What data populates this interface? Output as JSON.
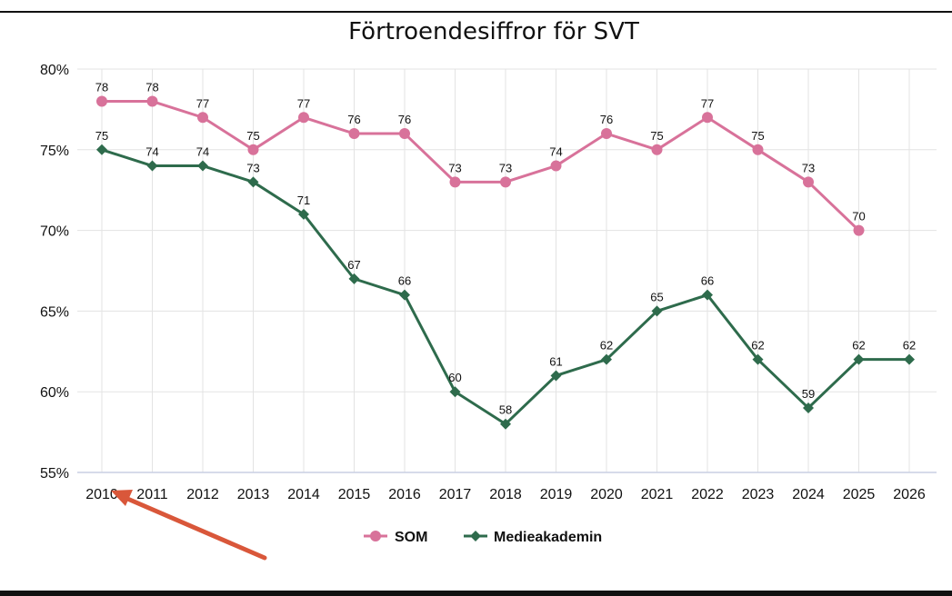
{
  "chart_data": {
    "type": "line",
    "title": "Förtroendesiffror för SVT",
    "xlabel": "",
    "ylabel": "",
    "categories": [
      "2010",
      "2011",
      "2012",
      "2013",
      "2014",
      "2015",
      "2016",
      "2017",
      "2018",
      "2019",
      "2020",
      "2021",
      "2022",
      "2023",
      "2024",
      "2025",
      "2026"
    ],
    "ylim": [
      55,
      80
    ],
    "y_ticks": [
      55,
      60,
      65,
      70,
      75,
      80
    ],
    "y_tick_labels": [
      "55%",
      "60%",
      "65%",
      "70%",
      "75%",
      "80%"
    ],
    "grid": true,
    "legend_position": "bottom-center",
    "series": [
      {
        "name": "SOM",
        "color": "#d8729a",
        "marker": "circle",
        "values": [
          78,
          78,
          77,
          75,
          77,
          76,
          76,
          73,
          73,
          74,
          76,
          75,
          77,
          75,
          73,
          70,
          null
        ]
      },
      {
        "name": "Medieakademin",
        "color": "#2e6b4c",
        "marker": "diamond",
        "values": [
          75,
          74,
          74,
          73,
          71,
          67,
          66,
          60,
          58,
          61,
          62,
          65,
          66,
          62,
          59,
          62,
          62
        ]
      }
    ],
    "annotation": {
      "type": "arrow",
      "color": "#d9573a",
      "points_to": "2010"
    }
  }
}
